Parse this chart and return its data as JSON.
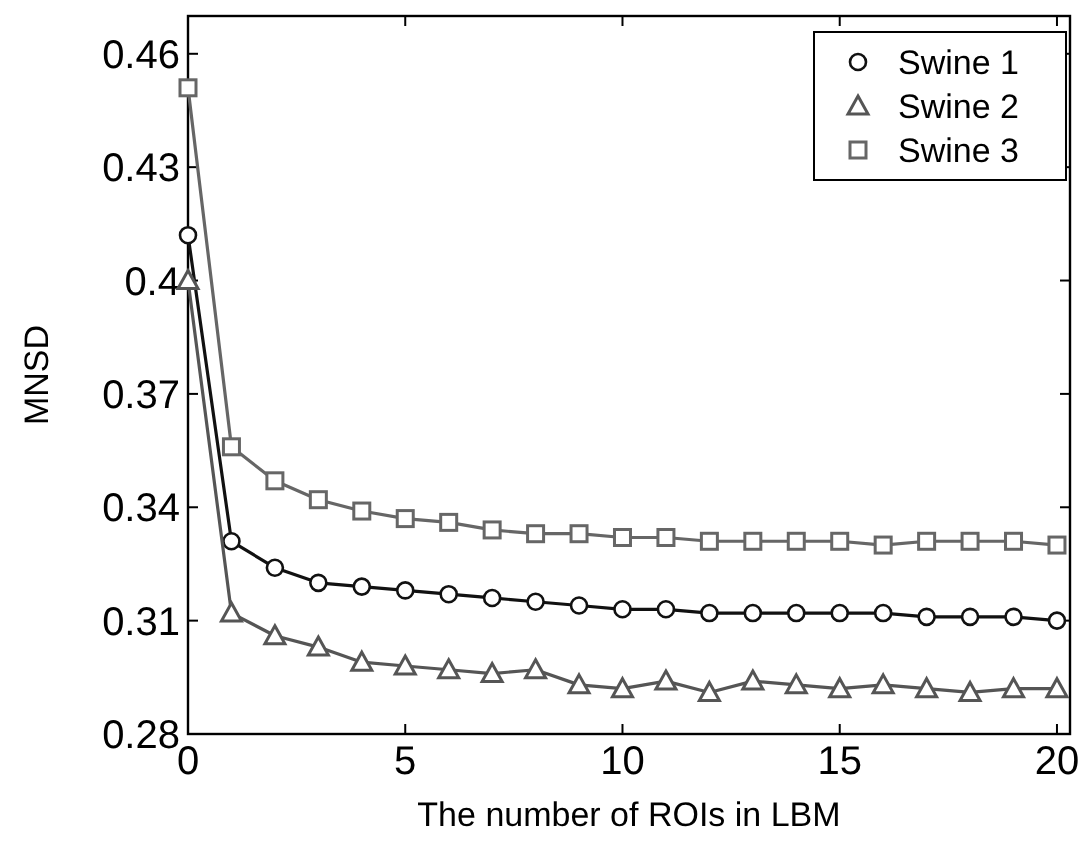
{
  "chart_data": {
    "type": "line",
    "xlabel": "The number of ROIs in LBM",
    "ylabel": "MNSD",
    "x": [
      0,
      1,
      2,
      3,
      4,
      5,
      6,
      7,
      8,
      9,
      10,
      11,
      12,
      13,
      14,
      15,
      16,
      17,
      18,
      19,
      20
    ],
    "series": [
      {
        "name": "Swine 1",
        "color": "#111111",
        "marker": "circle",
        "values": [
          0.412,
          0.331,
          0.324,
          0.32,
          0.319,
          0.318,
          0.317,
          0.316,
          0.315,
          0.314,
          0.313,
          0.313,
          0.312,
          0.312,
          0.312,
          0.312,
          0.312,
          0.311,
          0.311,
          0.311,
          0.31
        ]
      },
      {
        "name": "Swine 2",
        "color": "#555555",
        "marker": "triangle",
        "values": [
          0.4,
          0.312,
          0.306,
          0.303,
          0.299,
          0.298,
          0.297,
          0.296,
          0.297,
          0.293,
          0.292,
          0.294,
          0.291,
          0.294,
          0.293,
          0.292,
          0.293,
          0.292,
          0.291,
          0.292,
          0.292
        ]
      },
      {
        "name": "Swine 3",
        "color": "#666666",
        "marker": "square",
        "values": [
          0.451,
          0.356,
          0.347,
          0.342,
          0.339,
          0.337,
          0.336,
          0.334,
          0.333,
          0.333,
          0.332,
          0.332,
          0.331,
          0.331,
          0.331,
          0.331,
          0.33,
          0.331,
          0.331,
          0.331,
          0.33
        ]
      }
    ],
    "xlim": [
      0,
      20.3
    ],
    "xticks": [
      0,
      5,
      10,
      15,
      20
    ],
    "ylim": [
      0.28,
      0.47
    ],
    "yticks": [
      0.28,
      0.31,
      0.34,
      0.37,
      0.4,
      0.43,
      0.46
    ],
    "legend": "top right",
    "grid": false,
    "line_style": "solid"
  }
}
